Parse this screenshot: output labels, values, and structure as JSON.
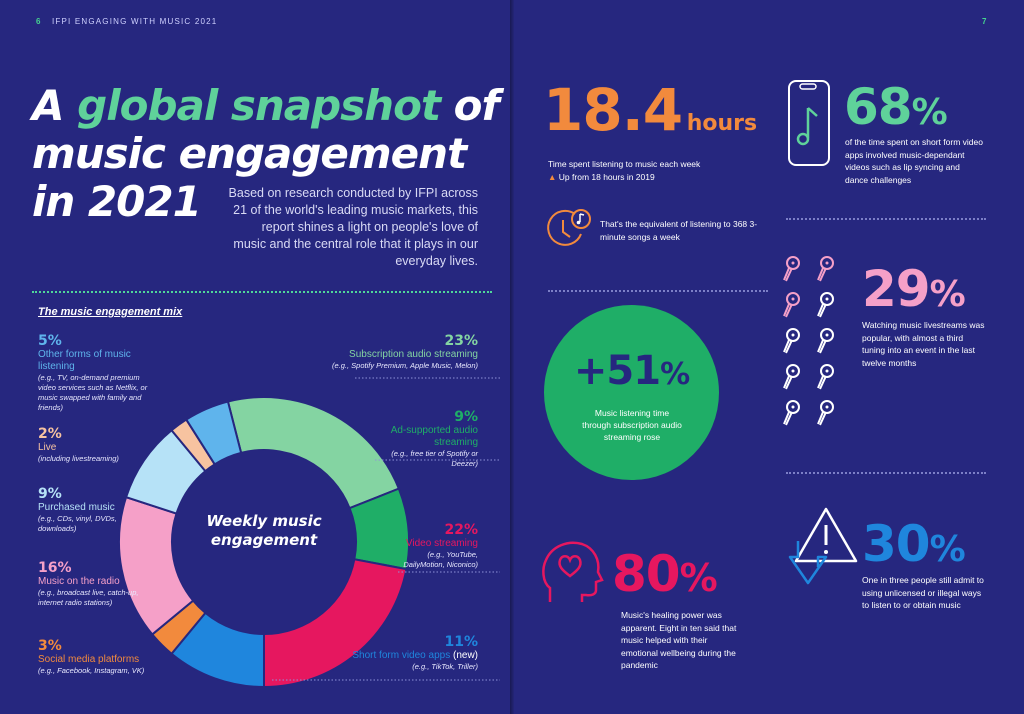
{
  "header": {
    "page_left": "6",
    "title_left": "IFPI ENGAGING WITH MUSIC 2021",
    "page_right": "7"
  },
  "headline": {
    "part1": "A",
    "highlight": "global snapshot",
    "part2": "of",
    "line2": "music engagement",
    "line3": "in 2021"
  },
  "intro": "Based on research conducted by IFPI across 21 of the world's leading music markets, this report shines a light on people's love of music and the central role that it plays in our everyday lives.",
  "mix": {
    "heading": "The music engagement mix",
    "center_label_1": "Weekly music",
    "center_label_2": "engagement",
    "items": [
      {
        "pct": "5%",
        "label": "Other forms of music listening",
        "note": "(e.g., TV, on-demand premium video services such as Netflix, or music swapped with family and friends)",
        "color": "#5fb4ec"
      },
      {
        "pct": "2%",
        "label": "Live",
        "note": "(including livestreaming)",
        "color": "#f7c3a0"
      },
      {
        "pct": "9%",
        "label": "Purchased music",
        "note": "(e.g., CDs, vinyl, DVDs, downloads)",
        "color": "#b6e2f7"
      },
      {
        "pct": "16%",
        "label": "Music on the radio",
        "note": "(e.g., broadcast live, catch-up, internet radio stations)",
        "color": "#f5a0c8"
      },
      {
        "pct": "3%",
        "label": "Social media platforms",
        "note": "(e.g., Facebook, Instagram, VK)",
        "color": "#f28a3d"
      },
      {
        "pct": "23%",
        "label": "Subscription audio streaming",
        "note": "(e.g., Spotify Premium, Apple Music, Melon)",
        "color": "#84d4a2"
      },
      {
        "pct": "9%",
        "label": "Ad-supported audio streaming",
        "note": "(e.g., free tier of Spotify or Deezer)",
        "color": "#1fae67"
      },
      {
        "pct": "22%",
        "label": "Video streaming",
        "note": "(e.g., YouTube, DailyMotion, Niconico)",
        "color": "#e6175f"
      },
      {
        "pct": "11%",
        "label_main": "Short form video apps",
        "label_suffix": "(new)",
        "note": "(e.g., TikTok, Triller)",
        "color": "#1f86dd"
      }
    ]
  },
  "chart_data": {
    "type": "pie",
    "title": "Weekly music engagement",
    "categories": [
      "Subscription audio streaming",
      "Ad-supported audio streaming",
      "Video streaming",
      "Short form video apps (new)",
      "Social media platforms",
      "Music on the radio",
      "Purchased music",
      "Live",
      "Other forms of music listening"
    ],
    "values": [
      23,
      9,
      22,
      11,
      3,
      16,
      9,
      2,
      5
    ],
    "colors": [
      "#84d4a2",
      "#1fae67",
      "#e6175f",
      "#1f86dd",
      "#f28a3d",
      "#f5a0c8",
      "#b6e2f7",
      "#f7c3a0",
      "#5fb4ec"
    ],
    "donut": true
  },
  "stats": {
    "hours": {
      "value": "18.4",
      "unit": "hours",
      "desc": "Time spent listening to music each week",
      "change": "Up from 18 hours in 2019",
      "equiv": "That's the equivalent of listening to 368 3-minute songs a week",
      "color": "#f28a3d"
    },
    "short_form": {
      "value": "68",
      "suffix": "%",
      "desc": "of the time spent on short form video apps involved music-dependant videos such as lip syncing and dance challenges",
      "color": "#5fd29a"
    },
    "livestream": {
      "value": "29",
      "suffix": "%",
      "desc": "Watching music livestreams was popular, with almost a third tuning into an event in the last twelve months",
      "color": "#f5a0c8"
    },
    "subscription": {
      "value": "+51",
      "suffix": "%",
      "desc": "Music listening time through subscription audio streaming rose",
      "color": "#1fae67"
    },
    "healing": {
      "value": "80",
      "suffix": "%",
      "desc": "Music's healing power was apparent. Eight in ten said that music helped with their emotional wellbeing during the pandemic",
      "color": "#e6175f"
    },
    "unlicensed": {
      "value": "30",
      "suffix": "%",
      "desc": "One in three people still admit to using unlicensed or illegal ways to listen to or obtain music",
      "color": "#1f86dd"
    }
  },
  "icons": {
    "clock": "clock-music-icon",
    "phone": "phone-music-icon",
    "mics": "microphone-icon",
    "head": "head-heart-icon",
    "warning": "warning-download-icon"
  }
}
